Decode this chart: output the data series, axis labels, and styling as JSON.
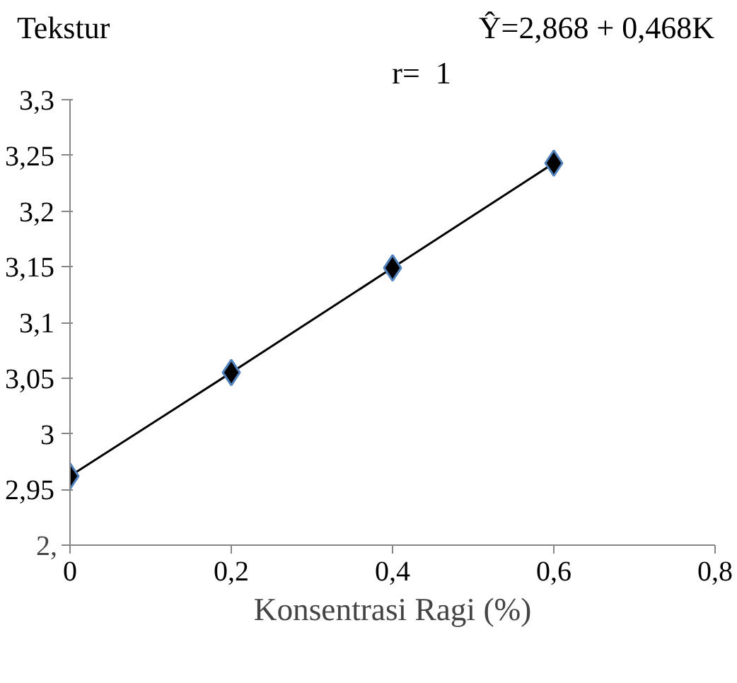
{
  "chart_data": {
    "type": "line",
    "ylabel": "Tekstur",
    "xlabel": "Konsentrasi Ragi (%)",
    "annotations": [
      "Ŷ=2,868 + 0,468K",
      "r=  1",
      "2,"
    ],
    "x": [
      0,
      0.2,
      0.4,
      0.6
    ],
    "series": [
      {
        "color": "#000000",
        "values": [
          2.962,
          3.055,
          3.149,
          3.243
        ]
      }
    ],
    "marker": "diamond",
    "line_style": "solid",
    "grid": false,
    "xlim": [
      0,
      0.8
    ],
    "xticks": [
      {
        "value": 0,
        "label": "0"
      },
      {
        "value": 0.2,
        "label": "0,2"
      },
      {
        "value": 0.4,
        "label": "0,4"
      },
      {
        "value": 0.6,
        "label": "0,6"
      },
      {
        "value": 0.8,
        "label": "0,8"
      }
    ],
    "ylim": [
      2.9,
      3.3
    ],
    "yticks": [
      {
        "value": 2.9,
        "label": null
      },
      {
        "value": 2.95,
        "label": "2,95"
      },
      {
        "value": 3.0,
        "label": "3"
      },
      {
        "value": 3.05,
        "label": "3,05"
      },
      {
        "value": 3.1,
        "label": "3,1"
      },
      {
        "value": 3.15,
        "label": "3,15"
      },
      {
        "value": 3.2,
        "label": "3,2"
      },
      {
        "value": 3.25,
        "label": "3,25"
      },
      {
        "value": 3.3,
        "label": "3,3"
      }
    ]
  }
}
